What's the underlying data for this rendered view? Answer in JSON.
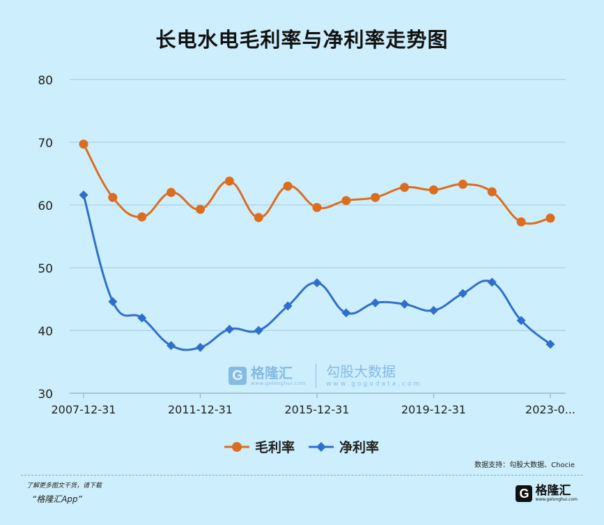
{
  "chart_data": {
    "type": "line",
    "title": "长电水电毛利率与净利率走势图",
    "x": [
      "2007-12-31",
      "2008-12-31",
      "2009-12-31",
      "2010-12-31",
      "2011-12-31",
      "2012-12-31",
      "2013-12-31",
      "2014-12-31",
      "2015-12-31",
      "2016-12-31",
      "2017-12-31",
      "2018-12-31",
      "2019-12-31",
      "2020-12-31",
      "2021-12-31",
      "2022-12-31",
      "2023-0..."
    ],
    "x_tick_labels": [
      "2007-12-31",
      "2011-12-31",
      "2015-12-31",
      "2019-12-31",
      "2023-0..."
    ],
    "ylim": [
      30,
      80
    ],
    "y_ticks": [
      "80",
      "70",
      "60",
      "50",
      "40",
      "30"
    ],
    "grid": "horizontal",
    "legend": "bottom-center",
    "series": [
      {
        "name": "毛利率",
        "color": "#dc6d1f",
        "marker": "circle",
        "values": [
          69.7,
          61.2,
          58.1,
          62.0,
          59.3,
          63.8,
          58.0,
          63.0,
          59.6,
          60.7,
          61.2,
          62.8,
          62.4,
          63.3,
          62.1,
          57.3,
          57.9
        ]
      },
      {
        "name": "净利率",
        "color": "#2f6fca",
        "marker": "diamond",
        "values": [
          61.6,
          44.6,
          42.0,
          37.6,
          37.3,
          40.2,
          40.0,
          43.9,
          47.6,
          42.8,
          44.4,
          44.2,
          43.2,
          45.9,
          47.7,
          41.6,
          37.8
        ]
      }
    ]
  },
  "watermark": {
    "logo_letter": "G",
    "brand": "格隆汇",
    "brand_sub": "www.gelonghui.com",
    "gogu": "勾股大数据",
    "gogu_sub": "www.gogudata.com"
  },
  "source_text": "数据支持：勾股大数据、Chocie",
  "promo": {
    "line1": "了解更多图文干货，请下载",
    "line2": "“格隆汇App”"
  },
  "footer_brand": {
    "logo_letter": "G",
    "name": "格隆汇",
    "sub": "www.gelonghui.com"
  },
  "colors": {
    "background": "#cdeefc",
    "grid": "#a9d2e3"
  }
}
